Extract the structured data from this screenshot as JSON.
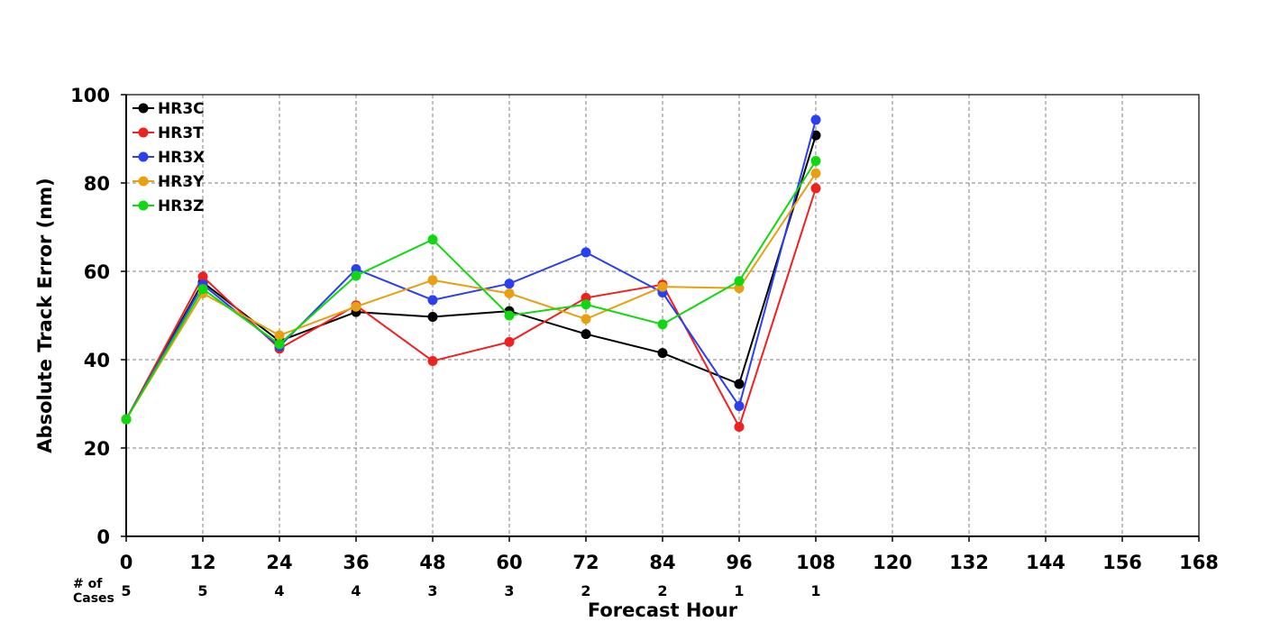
{
  "chart_data": {
    "type": "line",
    "title": "",
    "xlabel": "Forecast Hour",
    "ylabel": "Absolute Track Error (nm)",
    "xlim": [
      0,
      168
    ],
    "ylim": [
      0,
      100
    ],
    "x_ticks": [
      "0",
      "12",
      "24",
      "36",
      "48",
      "60",
      "72",
      "84",
      "96",
      "108",
      "120",
      "132",
      "144",
      "156",
      "168"
    ],
    "y_ticks": [
      "0",
      "20",
      "40",
      "60",
      "80",
      "100"
    ],
    "grid": true,
    "legend_position": "top-left",
    "cases_label_line1": "# of",
    "cases_label_line2": "Cases",
    "cases": [
      {
        "x": 0,
        "n": "5"
      },
      {
        "x": 12,
        "n": "5"
      },
      {
        "x": 24,
        "n": "4"
      },
      {
        "x": 36,
        "n": "4"
      },
      {
        "x": 48,
        "n": "3"
      },
      {
        "x": 60,
        "n": "3"
      },
      {
        "x": 72,
        "n": "2"
      },
      {
        "x": 84,
        "n": "2"
      },
      {
        "x": 96,
        "n": "1"
      },
      {
        "x": 108,
        "n": "1"
      }
    ],
    "x": [
      0,
      12,
      24,
      36,
      48,
      60,
      72,
      84,
      96,
      108
    ],
    "series": [
      {
        "name": "HR3C",
        "color": "#000000",
        "values": [
          26.5,
          57.5,
          44.2,
          50.8,
          49.7,
          51.0,
          45.8,
          41.5,
          34.5,
          90.8
        ]
      },
      {
        "name": "HR3T",
        "color": "#ef2020",
        "values": [
          26.5,
          58.8,
          42.5,
          52.3,
          39.7,
          44.0,
          54.0,
          57.0,
          24.8,
          78.8
        ]
      },
      {
        "name": "HR3X",
        "color": "#2a3ff0",
        "values": [
          26.5,
          57.0,
          43.0,
          60.5,
          53.5,
          57.2,
          64.3,
          55.2,
          29.5,
          94.3
        ]
      },
      {
        "name": "HR3Y",
        "color": "#e8a010",
        "values": [
          26.5,
          55.0,
          45.5,
          52.0,
          58.0,
          55.0,
          49.2,
          56.5,
          56.2,
          82.2
        ]
      },
      {
        "name": "HR3Z",
        "color": "#10d810",
        "values": [
          26.5,
          56.0,
          43.5,
          59.0,
          67.2,
          50.0,
          52.5,
          48.0,
          57.8,
          85.0
        ]
      }
    ]
  }
}
